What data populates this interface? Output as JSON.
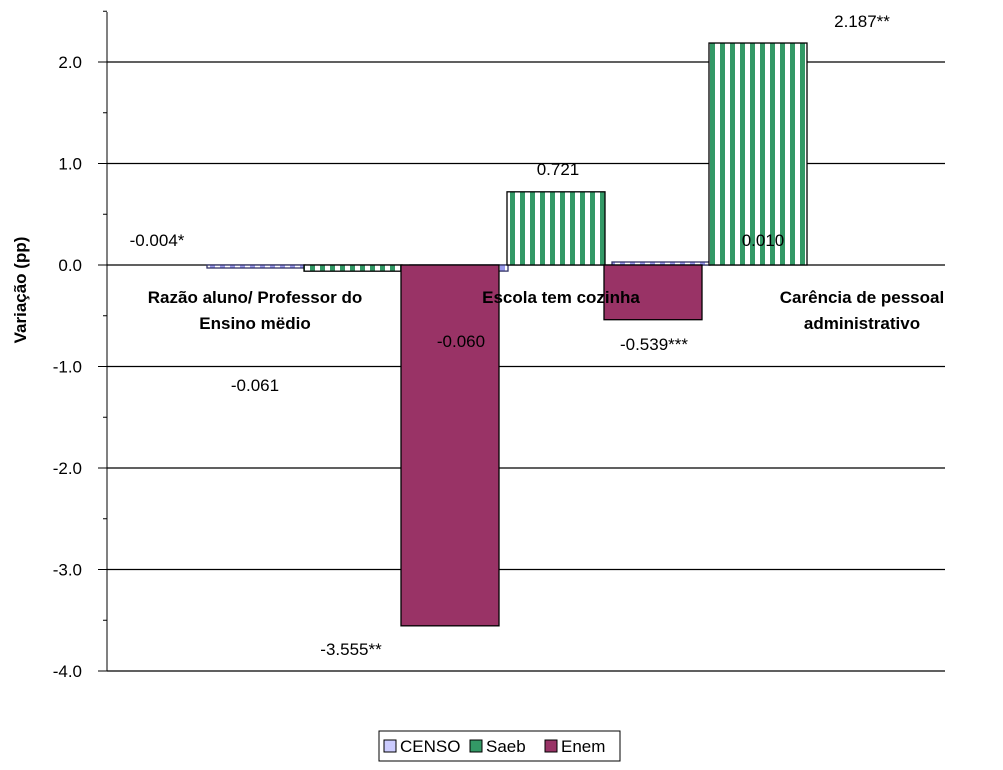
{
  "chart_data": {
    "type": "bar",
    "title": "",
    "ylabel": "Variação (pp)",
    "xlabel": "",
    "ylim": [
      -4.0,
      2.5
    ],
    "yticks": [
      "2.0",
      "1.0",
      "0.0",
      "-1.0",
      "-2.0",
      "-3.0",
      "-4.0"
    ],
    "grid": true,
    "legend_position": "bottom",
    "categories": [
      [
        "Razão aluno/ Professor do",
        "Ensino mëdio"
      ],
      [
        "Escola tem cozinha"
      ],
      [
        "Carência de pessoal",
        "administrativo"
      ]
    ],
    "series": [
      {
        "name": "CENSO",
        "values": [
          -0.004,
          -0.06,
          0.01
        ],
        "labels": [
          "-0.004*",
          "-0.060",
          "0.010"
        ],
        "color": "#ccccff",
        "pattern": "vertical-stripes-blue"
      },
      {
        "name": "Saeb",
        "values": [
          -0.061,
          0.721,
          2.187
        ],
        "labels": [
          "-0.061",
          "0.721",
          "2.187**"
        ],
        "color": "#339966",
        "pattern": "vertical-stripes-green"
      },
      {
        "name": "Enem",
        "values": [
          -3.555,
          -0.539,
          0.0
        ],
        "labels": [
          "-3.555**",
          "-0.539***",
          ""
        ],
        "color": "#993366",
        "pattern": "solid"
      }
    ]
  }
}
